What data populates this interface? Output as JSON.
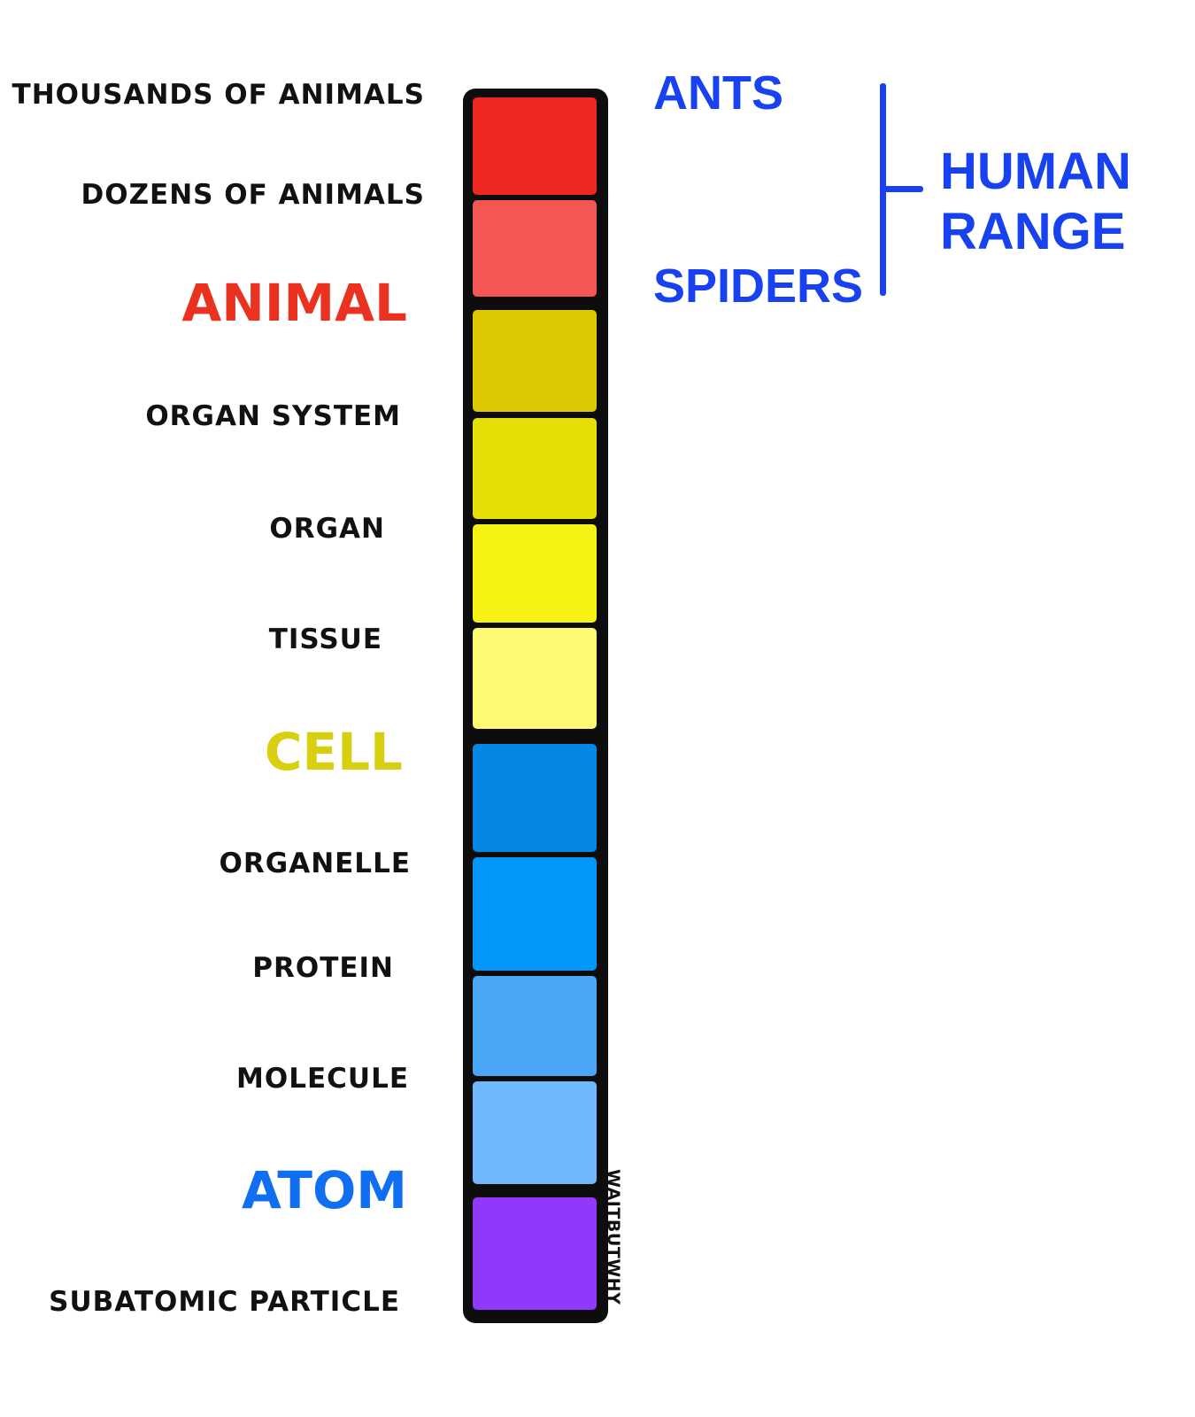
{
  "levels": [
    {
      "label": "THOUSANDS OF ANIMALS",
      "color": "#ee2722",
      "label_color": "#111111"
    },
    {
      "label": "DOZENS OF ANIMALS",
      "color": "#f45653",
      "label_color": "#111111"
    },
    {
      "label": "ANIMAL",
      "color": "#dcc901",
      "label_color": "#e93320"
    },
    {
      "label": "ORGAN SYSTEM",
      "color": "#e6de05",
      "label_color": "#111111"
    },
    {
      "label": "ORGAN",
      "color": "#f6f314",
      "label_color": "#111111"
    },
    {
      "label": "TISSUE",
      "color": "#fdf971",
      "label_color": "#111111"
    },
    {
      "label": "CELL",
      "color": "#0587e6",
      "label_color": "#d7cf0f"
    },
    {
      "label": "ORGANELLE",
      "color": "#0397f9",
      "label_color": "#111111"
    },
    {
      "label": "PROTEIN",
      "color": "#4aa7f7",
      "label_color": "#111111"
    },
    {
      "label": "MOLECULE",
      "color": "#6eb8fb",
      "label_color": "#111111"
    },
    {
      "label": "ATOM",
      "color": "#9039fb",
      "label_color": "#0f6ff0"
    },
    {
      "label": "SUBATOMIC PARTICLE",
      "color": "#111111",
      "label_color": "#111111"
    }
  ],
  "side_labels": {
    "ants": "ANTS",
    "spiders": "SPIDERS",
    "human_range_line1": "HUMAN",
    "human_range_line2": "RANGE"
  },
  "colors": {
    "side_blue": "#1842f0",
    "bracket_blue": "#1842f0",
    "column_border": "#0d0d0d"
  },
  "signature": "WAITBUTWHY"
}
